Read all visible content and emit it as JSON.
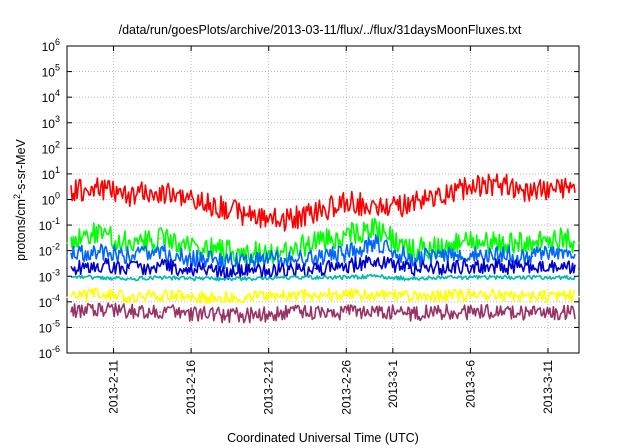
{
  "chart_data": {
    "type": "line",
    "title": "/data/run/goesPlots/archive/2013-03-11/flux/../flux/31daysMoonFluxes.txt",
    "xlabel": "Coordinated Universal Time (UTC)",
    "ylabel": "protons/cm²-s-sr-MeV",
    "ylabel_base": "protons/cm",
    "ylabel_sup": "2",
    "ylabel_rest": "-s-sr-MeV",
    "yscale": "log",
    "ylim": [
      1e-06,
      1000000.0
    ],
    "xlim": [
      "2013-02-08",
      "2013-03-13"
    ],
    "grid": true,
    "y_ticks": [
      {
        "base": "10",
        "exp": "-6",
        "value": 1e-06
      },
      {
        "base": "10",
        "exp": "-5",
        "value": 1e-05
      },
      {
        "base": "10",
        "exp": "-4",
        "value": 0.0001
      },
      {
        "base": "10",
        "exp": "-3",
        "value": 0.001
      },
      {
        "base": "10",
        "exp": "-2",
        "value": 0.01
      },
      {
        "base": "10",
        "exp": "-1",
        "value": 0.1
      },
      {
        "base": "10",
        "exp": "0",
        "value": 1
      },
      {
        "base": "10",
        "exp": "1",
        "value": 10
      },
      {
        "base": "10",
        "exp": "2",
        "value": 100
      },
      {
        "base": "10",
        "exp": "3",
        "value": 1000
      },
      {
        "base": "10",
        "exp": "4",
        "value": 10000
      },
      {
        "base": "10",
        "exp": "5",
        "value": 100000
      },
      {
        "base": "10",
        "exp": "6",
        "value": 1000000
      }
    ],
    "x_ticks": [
      "2013-2-11",
      "2013-2-16",
      "2013-2-21",
      "2013-2-26",
      "2013-3-1",
      "2013-3-6",
      "2013-3-11"
    ],
    "series": [
      {
        "color": "#ff0000",
        "x": [
          "2013-02-08",
          "2013-02-10",
          "2013-02-12",
          "2013-02-14",
          "2013-02-16",
          "2013-02-18",
          "2013-02-20",
          "2013-02-22",
          "2013-02-24",
          "2013-02-26",
          "2013-02-28",
          "2013-03-02",
          "2013-03-04",
          "2013-03-06",
          "2013-03-08",
          "2013-03-10",
          "2013-03-12",
          "2013-03-13"
        ],
        "values": [
          2,
          3,
          1.5,
          2,
          1,
          0.5,
          0.2,
          0.15,
          0.3,
          0.8,
          0.5,
          0.6,
          1.5,
          3,
          4,
          2,
          3,
          2.5
        ]
      },
      {
        "color": "#00ff00",
        "x": [
          "2013-02-08",
          "2013-02-10",
          "2013-02-12",
          "2013-02-14",
          "2013-02-16",
          "2013-02-18",
          "2013-02-20",
          "2013-02-22",
          "2013-02-24",
          "2013-02-26",
          "2013-02-28",
          "2013-03-02",
          "2013-03-04",
          "2013-03-06",
          "2013-03-08",
          "2013-03-10",
          "2013-03-12",
          "2013-03-13"
        ],
        "values": [
          0.02,
          0.05,
          0.02,
          0.03,
          0.015,
          0.01,
          0.008,
          0.01,
          0.02,
          0.04,
          0.08,
          0.01,
          0.015,
          0.02,
          0.02,
          0.02,
          0.03,
          0.02
        ]
      },
      {
        "color": "#0066ff",
        "x": [
          "2013-02-08",
          "2013-02-10",
          "2013-02-12",
          "2013-02-14",
          "2013-02-16",
          "2013-02-18",
          "2013-02-20",
          "2013-02-22",
          "2013-02-24",
          "2013-02-26",
          "2013-02-28",
          "2013-03-02",
          "2013-03-04",
          "2013-03-06",
          "2013-03-08",
          "2013-03-10",
          "2013-03-12",
          "2013-03-13"
        ],
        "values": [
          0.006,
          0.01,
          0.006,
          0.008,
          0.005,
          0.004,
          0.004,
          0.005,
          0.006,
          0.008,
          0.02,
          0.005,
          0.006,
          0.007,
          0.007,
          0.006,
          0.008,
          0.006
        ]
      },
      {
        "color": "#0000cc",
        "x": [
          "2013-02-08",
          "2013-02-10",
          "2013-02-12",
          "2013-02-14",
          "2013-02-16",
          "2013-02-18",
          "2013-02-20",
          "2013-02-22",
          "2013-02-24",
          "2013-02-26",
          "2013-02-28",
          "2013-03-02",
          "2013-03-04",
          "2013-03-06",
          "2013-03-08",
          "2013-03-10",
          "2013-03-12",
          "2013-03-13"
        ],
        "values": [
          0.002,
          0.003,
          0.002,
          0.0025,
          0.0018,
          0.0015,
          0.0015,
          0.0018,
          0.002,
          0.0025,
          0.004,
          0.002,
          0.002,
          0.0025,
          0.0025,
          0.002,
          0.0025,
          0.002
        ]
      },
      {
        "color": "#00bbaa",
        "x": [
          "2013-02-08",
          "2013-02-10",
          "2013-02-12",
          "2013-02-14",
          "2013-02-16",
          "2013-02-18",
          "2013-02-20",
          "2013-02-22",
          "2013-02-24",
          "2013-02-26",
          "2013-02-28",
          "2013-03-02",
          "2013-03-04",
          "2013-03-06",
          "2013-03-08",
          "2013-03-10",
          "2013-03-12",
          "2013-03-13"
        ],
        "values": [
          0.0009,
          0.0009,
          0.0008,
          0.0009,
          0.0008,
          0.0008,
          0.0008,
          0.0009,
          0.0009,
          0.0009,
          0.001,
          0.0008,
          0.0009,
          0.0009,
          0.0009,
          0.0009,
          0.0009,
          0.0009
        ]
      },
      {
        "color": "#ffff00",
        "x": [
          "2013-02-08",
          "2013-02-10",
          "2013-02-12",
          "2013-02-14",
          "2013-02-16",
          "2013-02-18",
          "2013-02-20",
          "2013-02-22",
          "2013-02-24",
          "2013-02-26",
          "2013-02-28",
          "2013-03-02",
          "2013-03-04",
          "2013-03-06",
          "2013-03-08",
          "2013-03-10",
          "2013-03-12",
          "2013-03-13"
        ],
        "values": [
          0.00015,
          0.0002,
          0.00015,
          0.00018,
          0.00015,
          0.00014,
          0.00015,
          0.00016,
          0.00018,
          0.0002,
          0.00018,
          0.00016,
          0.00016,
          0.00018,
          0.00017,
          0.00016,
          0.00018,
          0.00016
        ]
      },
      {
        "color": "#993366",
        "x": [
          "2013-02-08",
          "2013-02-10",
          "2013-02-12",
          "2013-02-14",
          "2013-02-16",
          "2013-02-18",
          "2013-02-20",
          "2013-02-22",
          "2013-02-24",
          "2013-02-26",
          "2013-02-28",
          "2013-03-02",
          "2013-03-04",
          "2013-03-06",
          "2013-03-08",
          "2013-03-10",
          "2013-03-12",
          "2013-03-13"
        ],
        "values": [
          4e-05,
          5e-05,
          4e-05,
          4e-05,
          3.5e-05,
          3e-05,
          3e-05,
          3.5e-05,
          4e-05,
          4e-05,
          4e-05,
          3.5e-05,
          4e-05,
          4e-05,
          4e-05,
          3.5e-05,
          4e-05,
          3.5e-05
        ]
      }
    ]
  }
}
